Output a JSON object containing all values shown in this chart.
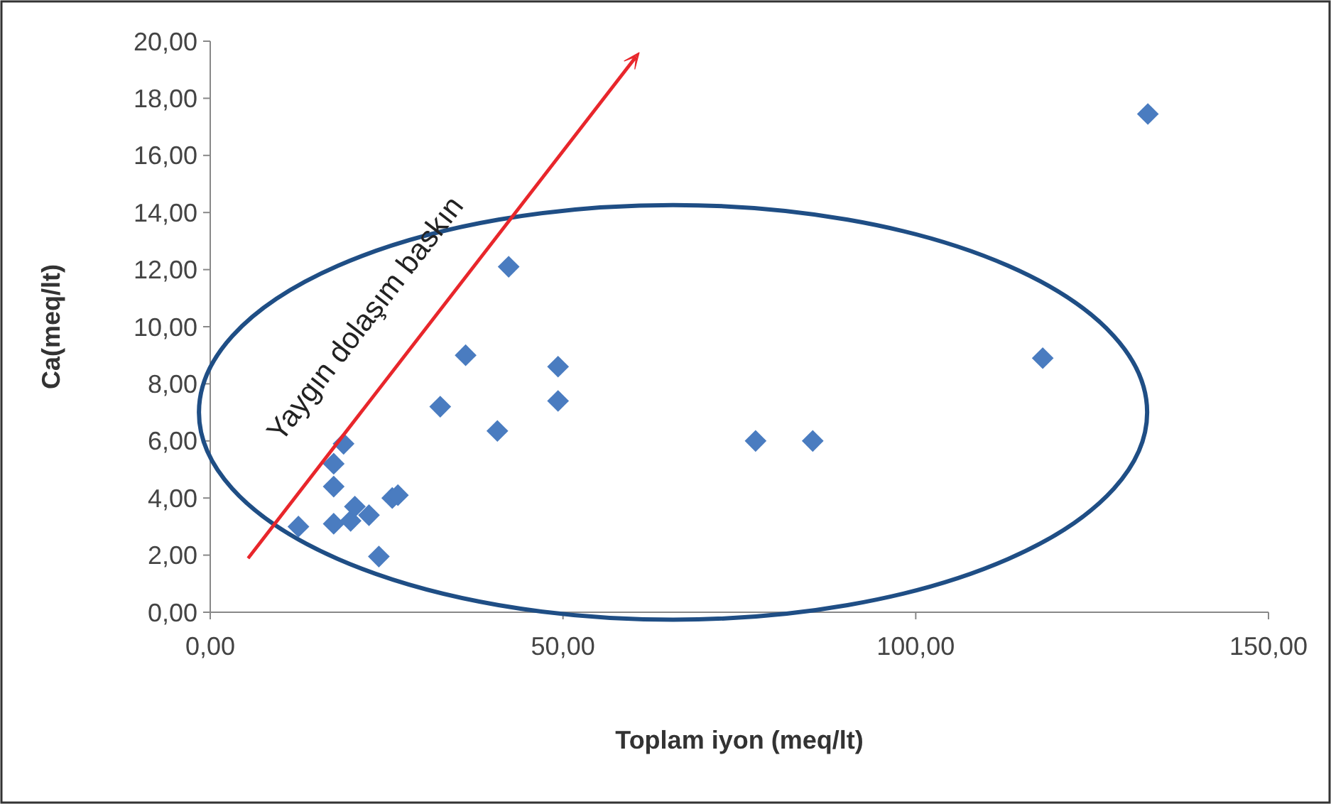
{
  "chart_data": {
    "type": "scatter",
    "xlabel": "Toplam iyon (meq/lt)",
    "ylabel": "Ca(meq/lt)",
    "annotations": [
      "Yaygın dolaşım baskın"
    ],
    "xlim": [
      0,
      150
    ],
    "xticks": [
      {
        "value": 0,
        "label": "0,00"
      },
      {
        "value": 50,
        "label": "50,00"
      },
      {
        "value": 100,
        "label": "100,00"
      },
      {
        "value": 150,
        "label": "150,00"
      }
    ],
    "ylim": [
      0,
      20
    ],
    "yticks": [
      {
        "value": 0,
        "label": "0,00"
      },
      {
        "value": 2,
        "label": "2,00"
      },
      {
        "value": 4,
        "label": "4,00"
      },
      {
        "value": 6,
        "label": "6,00"
      },
      {
        "value": 8,
        "label": "8,00"
      },
      {
        "value": 10,
        "label": "10,00"
      },
      {
        "value": 12,
        "label": "12,00"
      },
      {
        "value": 14,
        "label": "14,00"
      },
      {
        "value": 16,
        "label": "16,00"
      },
      {
        "value": 18,
        "label": "18,00"
      },
      {
        "value": 20,
        "label": "20,00"
      }
    ],
    "grid": false,
    "marker": "diamond",
    "series": [
      {
        "color": "#4a7cc0",
        "x": [
          12.5,
          18.9,
          17.5,
          17.5,
          17.5,
          19.9,
          20.5,
          22.5,
          23.9,
          25.8,
          26.6,
          32.6,
          36.2,
          40.7,
          42.3,
          49.3,
          49.3,
          77.3,
          85.4,
          118,
          132.9
        ],
        "values": [
          3.0,
          5.9,
          5.2,
          4.4,
          3.1,
          3.2,
          3.7,
          3.4,
          1.95,
          4.0,
          4.1,
          7.2,
          9.0,
          6.35,
          12.1,
          8.6,
          7.4,
          6.0,
          6.0,
          8.9,
          17.45
        ]
      }
    ]
  }
}
